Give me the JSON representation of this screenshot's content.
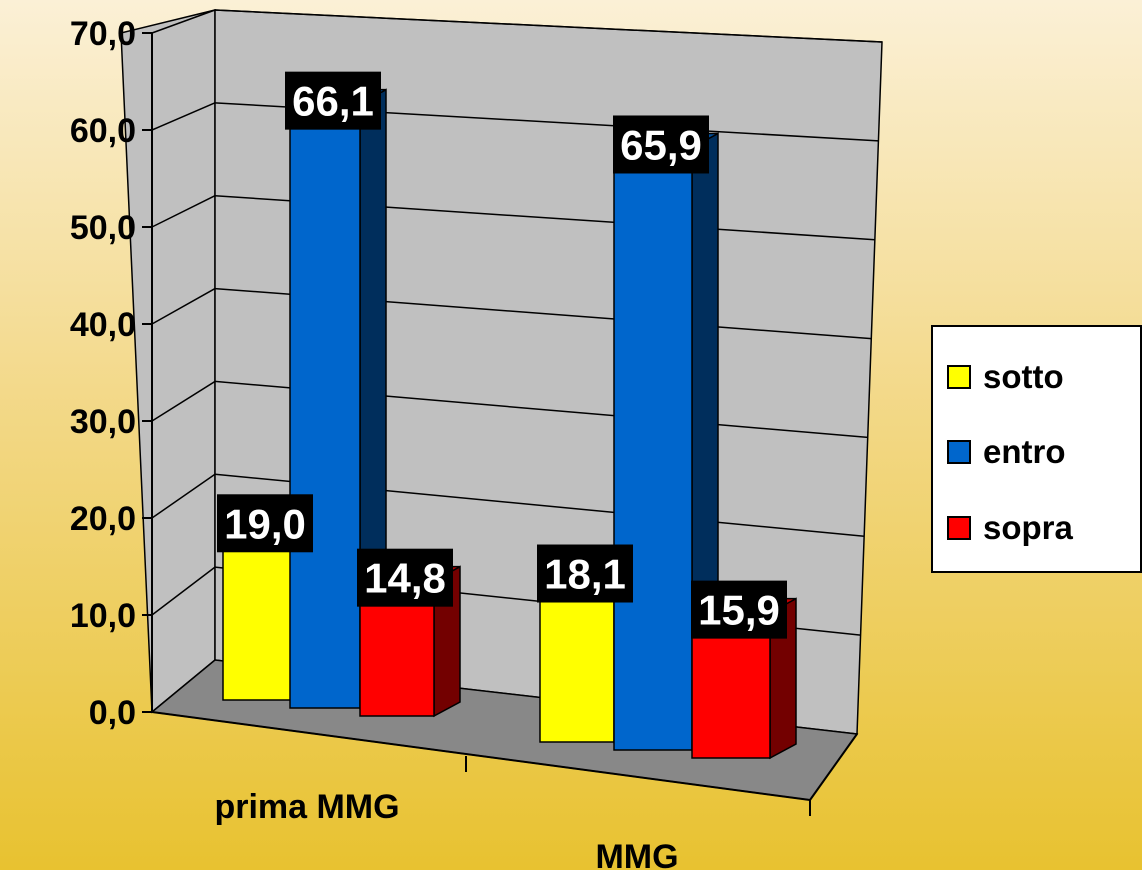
{
  "chart_data": {
    "type": "bar",
    "categories": [
      "prima MMG",
      "MMG"
    ],
    "series": [
      {
        "name": "sotto",
        "values": [
          19.0,
          18.1
        ],
        "color": "#ffff00"
      },
      {
        "name": "entro",
        "values": [
          66.1,
          65.9
        ],
        "color": "#0066cc"
      },
      {
        "name": "sopra",
        "values": [
          14.8,
          15.9
        ],
        "color": "#ff0000"
      }
    ],
    "data_labels": [
      [
        "19,0",
        "66,1",
        "14,8"
      ],
      [
        "18,1",
        "65,9",
        "15,9"
      ]
    ],
    "y_ticks": [
      "0,0",
      "10,0",
      "20,0",
      "30,0",
      "40,0",
      "50,0",
      "60,0",
      "70,0"
    ],
    "ylim": [
      0,
      70
    ],
    "grid": true,
    "legend_position": "right",
    "three_d": true
  }
}
